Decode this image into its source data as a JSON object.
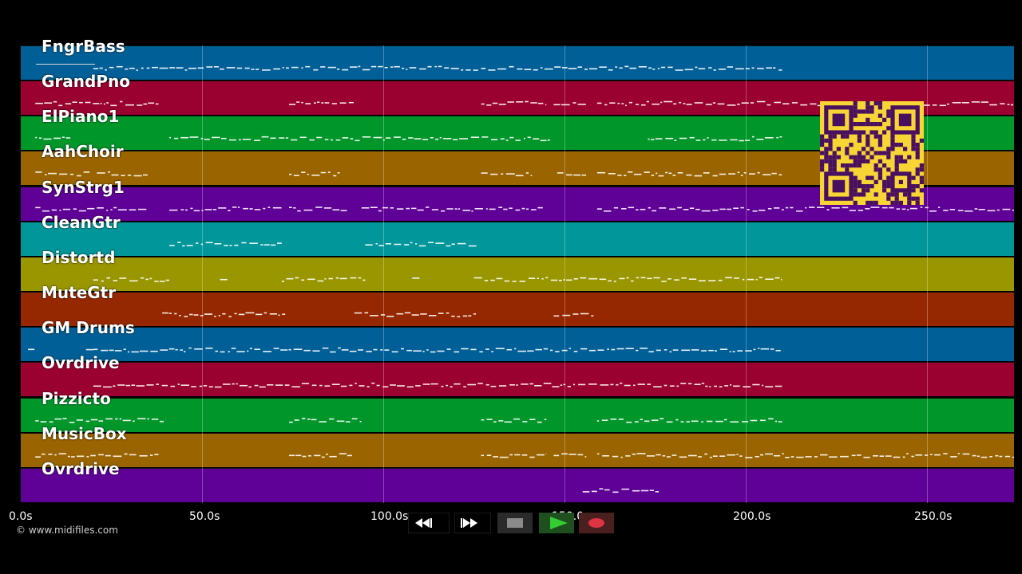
{
  "copyright": "© www.midifiles.com",
  "timeline": {
    "max_seconds": 274,
    "ticks": [
      {
        "label": "0.0s",
        "seconds": 0
      },
      {
        "label": "50.0s",
        "seconds": 50
      },
      {
        "label": "100.0s",
        "seconds": 100
      },
      {
        "label": "150.0s",
        "seconds": 150
      },
      {
        "label": "200.0s",
        "seconds": 200
      },
      {
        "label": "250.0s",
        "seconds": 250
      }
    ]
  },
  "tracks": [
    {
      "name": "FngrBass",
      "color": "#005f96",
      "notes": [
        [
          20,
          210
        ]
      ]
    },
    {
      "name": "GrandPno",
      "color": "#9a0030",
      "notes": [
        [
          4,
          38
        ],
        [
          74,
          92
        ],
        [
          127,
          145
        ],
        [
          147,
          156
        ],
        [
          159,
          274
        ]
      ]
    },
    {
      "name": "ElPiano1",
      "color": "#00962a",
      "notes": [
        [
          4,
          14
        ],
        [
          41,
          146
        ],
        [
          173,
          210
        ]
      ]
    },
    {
      "name": "AahChoir",
      "color": "#9a6400",
      "notes": [
        [
          4,
          19
        ],
        [
          21,
          35
        ],
        [
          74,
          88
        ],
        [
          127,
          141
        ],
        [
          148,
          156
        ],
        [
          159,
          210
        ]
      ]
    },
    {
      "name": "SynStrg1",
      "color": "#5f0096",
      "notes": [
        [
          4,
          35
        ],
        [
          41,
          72
        ],
        [
          74,
          90
        ],
        [
          94,
          144
        ],
        [
          159,
          274
        ]
      ]
    },
    {
      "name": "CleanGtr",
      "color": "#00969a",
      "notes": [
        [
          41,
          72
        ],
        [
          95,
          126
        ]
      ]
    },
    {
      "name": "Distortd",
      "color": "#9a9600",
      "notes": [
        [
          20,
          41
        ],
        [
          55,
          57
        ],
        [
          72,
          95
        ],
        [
          108,
          110
        ],
        [
          125,
          210
        ]
      ]
    },
    {
      "name": "MuteGtr",
      "color": "#962800",
      "notes": [
        [
          39,
          73
        ],
        [
          92,
          126
        ],
        [
          147,
          158
        ]
      ]
    },
    {
      "name": "GM Drums",
      "color": "#005f96",
      "notes": [
        [
          2,
          4
        ],
        [
          18,
          20
        ],
        [
          20,
          210
        ]
      ]
    },
    {
      "name": "Ovrdrive",
      "color": "#9a0030",
      "notes": [
        [
          20,
          210
        ]
      ]
    },
    {
      "name": "Pizzicto",
      "color": "#00962a",
      "notes": [
        [
          4,
          40
        ],
        [
          74,
          94
        ],
        [
          127,
          145
        ],
        [
          159,
          210
        ]
      ]
    },
    {
      "name": "MusicBox",
      "color": "#9a6400",
      "notes": [
        [
          4,
          38
        ],
        [
          74,
          92
        ],
        [
          127,
          145
        ],
        [
          147,
          156
        ],
        [
          159,
          274
        ]
      ]
    },
    {
      "name": "Ovrdrive",
      "color": "#5f0096",
      "notes": [
        [
          155,
          176
        ]
      ]
    }
  ],
  "transport": {
    "icons": [
      "rewind-icon",
      "fast-forward-icon",
      "stop-icon",
      "play-icon",
      "record-icon"
    ],
    "colors": {
      "bg": "#2a2a2a",
      "stop": "#8a8a8a",
      "play": "#33cc33",
      "record": "#dd3344",
      "play_bg": "#1f4f1f",
      "record_bg": "#4a1f1f"
    }
  },
  "qr_icon": "qr-code-icon"
}
